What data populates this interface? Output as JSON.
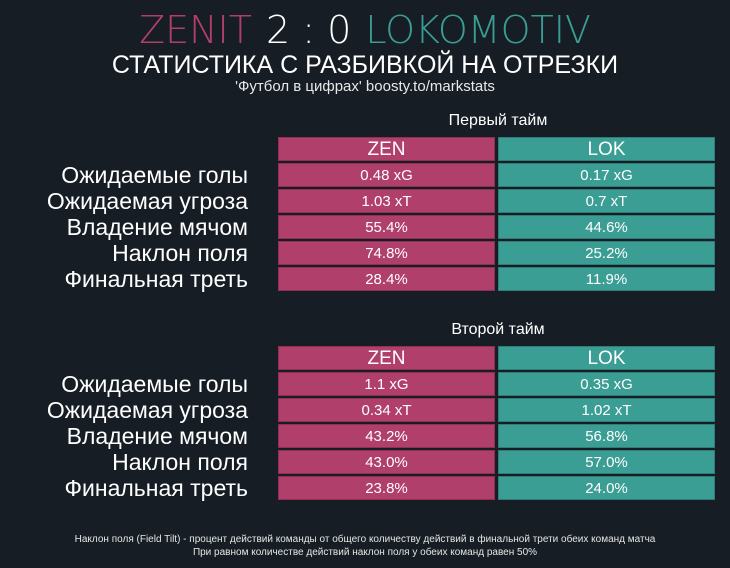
{
  "header": {
    "home_team": "ZENIT",
    "score": "2 : 0",
    "away_team": "LOKOMOTIV",
    "subtitle": "СТАТИСТИКА С РАЗБИВКОЙ НА ОТРЕЗКИ",
    "source": "'Футбол в цифрах' boosty.to/markstats"
  },
  "colors": {
    "home": "#b0406b",
    "away": "#3b9e95",
    "background": "#161d24"
  },
  "first_half": {
    "title": "Первый тайм",
    "home_abbr": "ZEN",
    "away_abbr": "LOK",
    "rows": [
      {
        "label": "Ожидаемые голы",
        "home": "0.48 xG",
        "away": "0.17 xG"
      },
      {
        "label": "Ожидаемая угроза",
        "home": "1.03 xT",
        "away": "0.7 xT"
      },
      {
        "label": "Владение мячом",
        "home": "55.4%",
        "away": "44.6%"
      },
      {
        "label": "Наклон поля",
        "home": "74.8%",
        "away": "25.2%"
      },
      {
        "label": "Финальная треть",
        "home": "28.4%",
        "away": "11.9%"
      }
    ]
  },
  "second_half": {
    "title": "Второй тайм",
    "home_abbr": "ZEN",
    "away_abbr": "LOK",
    "rows": [
      {
        "label": "Ожидаемые голы",
        "home": "1.1 xG",
        "away": "0.35 xG"
      },
      {
        "label": "Ожидаемая угроза",
        "home": "0.34 xT",
        "away": "1.02 xT"
      },
      {
        "label": "Владение мячом",
        "home": "43.2%",
        "away": "56.8%"
      },
      {
        "label": "Наклон поля",
        "home": "43.0%",
        "away": "57.0%"
      },
      {
        "label": "Финальная треть",
        "home": "23.8%",
        "away": "24.0%"
      }
    ]
  },
  "footnote": {
    "line1": "Наклон поля (Field Tilt) - процент действий команды от общего количеству действий в финальной трети обеих команд матча",
    "line2": "При равном количестве действий наклон поля у обеих команд равен 50%"
  }
}
